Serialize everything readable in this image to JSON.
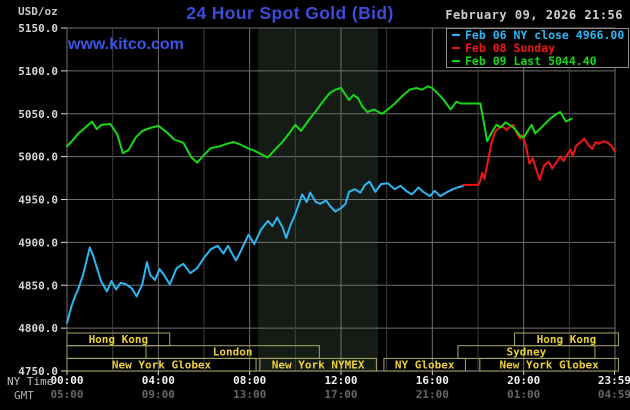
{
  "header": {
    "unit_label": "USD/oz",
    "title": "24 Hour Spot Gold (Bid)",
    "datetime": "February 09, 2026 21:56"
  },
  "watermark": "www.kitco.com",
  "legend": {
    "items": [
      {
        "label": "Feb 06 NY close 4966.00",
        "color": "#2cb6f2"
      },
      {
        "label": "Feb 08 Sunday",
        "color": "#f01616"
      },
      {
        "label": "Feb 09 Last 5044.40",
        "color": "#17d817"
      }
    ]
  },
  "axis_captions": {
    "primary": "NY Time",
    "secondary": "GMT"
  },
  "chart_data": {
    "type": "line",
    "title": "24 Hour Spot Gold (Bid)",
    "ylabel": "USD/oz",
    "ylim": [
      4750,
      5150
    ],
    "xlim_hours": [
      0,
      24
    ],
    "grid": true,
    "legend_position": "top-right",
    "y_ticks": [
      {
        "value": 5150,
        "label": "5150.0"
      },
      {
        "value": 5100,
        "label": "5100.0"
      },
      {
        "value": 5050,
        "label": "5050.0"
      },
      {
        "value": 5000,
        "label": "5000.0"
      },
      {
        "value": 4950,
        "label": "4950.0"
      },
      {
        "value": 4900,
        "label": "4900.0"
      },
      {
        "value": 4850,
        "label": "4850.0"
      },
      {
        "value": 4800,
        "label": "4800.0"
      },
      {
        "value": 4750,
        "label": "4750.0"
      }
    ],
    "x_ticks": [
      {
        "hour": 0,
        "ny": "00:00",
        "gmt": "05:00"
      },
      {
        "hour": 4,
        "ny": "04:00",
        "gmt": "09:00"
      },
      {
        "hour": 8,
        "ny": "08:00",
        "gmt": "13:00"
      },
      {
        "hour": 12,
        "ny": "12:00",
        "gmt": "17:00"
      },
      {
        "hour": 16,
        "ny": "16:00",
        "gmt": "21:00"
      },
      {
        "hour": 20,
        "ny": "20:00",
        "gmt": "01:00"
      },
      {
        "hour": 23.983,
        "ny": "23:59",
        "gmt": "04:59"
      }
    ],
    "grid_minor_hours": [
      2,
      6,
      10,
      14,
      18,
      22
    ],
    "grid_major_hours": [
      4,
      8,
      12,
      16,
      20
    ],
    "highlight_band_hours": [
      8.37,
      13.62
    ],
    "colors": {
      "band": "#151c15",
      "grid_major": "#6f6f6f",
      "grid_minor": "#3e3e3e",
      "axis_line": "#9a9a9a",
      "tick": "#d8d8d8",
      "y_label": "#d6d6d6",
      "x_label_ny": "#f0f0f0",
      "x_label_gmt": "#666666",
      "session_border": "#a8a863",
      "session_text": "#e9cf3b"
    },
    "sessions": [
      {
        "label": "Hong Kong",
        "row": 0,
        "start": 0,
        "end": 4.5
      },
      {
        "label": "Hong Kong",
        "row": 0,
        "start": 19.6,
        "end": 24.15
      },
      {
        "label": "",
        "row": 1,
        "start": 0,
        "end": 3.46
      },
      {
        "label": "London",
        "row": 1,
        "start": 3.46,
        "end": 11.05
      },
      {
        "label": "Sydney",
        "row": 1,
        "start": 17.12,
        "end": 23.12
      },
      {
        "label": "New York Globex",
        "row": 2,
        "start": 0,
        "end": 8.28
      },
      {
        "label": "New York NYMEX",
        "row": 2,
        "start": 8.45,
        "end": 13.55
      },
      {
        "label": "NY Globex",
        "row": 2,
        "start": 13.88,
        "end": 17.45
      },
      {
        "label": "New York Globex",
        "row": 2,
        "start": 18.08,
        "end": 24.15
      }
    ],
    "series": [
      {
        "name": "Feb 06",
        "color": "#2cb6f2",
        "points": [
          [
            0,
            4806
          ],
          [
            0.2,
            4826
          ],
          [
            0.35,
            4837
          ],
          [
            0.5,
            4846
          ],
          [
            0.7,
            4862
          ],
          [
            0.85,
            4878
          ],
          [
            1.0,
            4894
          ],
          [
            1.15,
            4884
          ],
          [
            1.3,
            4871
          ],
          [
            1.5,
            4854
          ],
          [
            1.75,
            4843
          ],
          [
            1.95,
            4855
          ],
          [
            2.15,
            4845
          ],
          [
            2.35,
            4853
          ],
          [
            2.6,
            4851
          ],
          [
            2.85,
            4846
          ],
          [
            3.05,
            4837
          ],
          [
            3.3,
            4851
          ],
          [
            3.5,
            4877
          ],
          [
            3.65,
            4862
          ],
          [
            3.85,
            4856
          ],
          [
            4.05,
            4869
          ],
          [
            4.25,
            4862
          ],
          [
            4.5,
            4851
          ],
          [
            4.8,
            4870
          ],
          [
            5.1,
            4875
          ],
          [
            5.4,
            4864
          ],
          [
            5.7,
            4870
          ],
          [
            6.0,
            4882
          ],
          [
            6.3,
            4892
          ],
          [
            6.6,
            4896
          ],
          [
            6.85,
            4887
          ],
          [
            7.05,
            4896
          ],
          [
            7.25,
            4886
          ],
          [
            7.4,
            4879
          ],
          [
            7.65,
            4892
          ],
          [
            7.95,
            4909
          ],
          [
            8.2,
            4898
          ],
          [
            8.5,
            4915
          ],
          [
            8.8,
            4925
          ],
          [
            9.0,
            4919
          ],
          [
            9.2,
            4929
          ],
          [
            9.45,
            4917
          ],
          [
            9.6,
            4905
          ],
          [
            9.8,
            4921
          ],
          [
            10.0,
            4933
          ],
          [
            10.3,
            4956
          ],
          [
            10.5,
            4947
          ],
          [
            10.65,
            4958
          ],
          [
            10.9,
            4947
          ],
          [
            11.1,
            4945
          ],
          [
            11.35,
            4949
          ],
          [
            11.5,
            4943
          ],
          [
            11.75,
            4936
          ],
          [
            12.0,
            4940
          ],
          [
            12.2,
            4945
          ],
          [
            12.35,
            4959
          ],
          [
            12.6,
            4962
          ],
          [
            12.85,
            4958
          ],
          [
            13.05,
            4967
          ],
          [
            13.25,
            4971
          ],
          [
            13.5,
            4959
          ],
          [
            13.75,
            4968
          ],
          [
            14.05,
            4969
          ],
          [
            14.35,
            4962
          ],
          [
            14.6,
            4966
          ],
          [
            14.85,
            4960
          ],
          [
            15.1,
            4956
          ],
          [
            15.4,
            4964
          ],
          [
            15.6,
            4959
          ],
          [
            15.9,
            4954
          ],
          [
            16.1,
            4960
          ],
          [
            16.35,
            4954
          ],
          [
            16.6,
            4958
          ],
          [
            16.9,
            4962
          ],
          [
            17.1,
            4964
          ],
          [
            17.35,
            4966
          ]
        ]
      },
      {
        "name": "Feb 08",
        "color": "#f01616",
        "points": [
          [
            17.35,
            4967
          ],
          [
            18.0,
            4967
          ],
          [
            18.1,
            4972
          ],
          [
            18.18,
            4981
          ],
          [
            18.28,
            4974
          ],
          [
            18.45,
            4997
          ],
          [
            18.6,
            5017
          ],
          [
            18.75,
            5029
          ],
          [
            18.9,
            5033
          ],
          [
            19.05,
            5036
          ],
          [
            19.25,
            5031
          ],
          [
            19.4,
            5035
          ],
          [
            19.55,
            5037
          ],
          [
            19.7,
            5027
          ],
          [
            19.85,
            5021
          ],
          [
            19.95,
            5025
          ],
          [
            20.1,
            5012
          ],
          [
            20.25,
            4992
          ],
          [
            20.4,
            4998
          ],
          [
            20.55,
            4985
          ],
          [
            20.7,
            4973
          ],
          [
            20.9,
            4990
          ],
          [
            21.1,
            4994
          ],
          [
            21.25,
            4986
          ],
          [
            21.45,
            4994
          ],
          [
            21.6,
            5000
          ],
          [
            21.75,
            4995
          ],
          [
            21.9,
            5002
          ],
          [
            22.05,
            5008
          ],
          [
            22.15,
            5001
          ],
          [
            22.3,
            5013
          ],
          [
            22.5,
            5017
          ],
          [
            22.65,
            5021
          ],
          [
            22.85,
            5013
          ],
          [
            23.0,
            5009
          ],
          [
            23.15,
            5017
          ],
          [
            23.3,
            5015
          ],
          [
            23.5,
            5018
          ],
          [
            23.7,
            5016
          ],
          [
            23.85,
            5012
          ],
          [
            24.0,
            5006
          ]
        ]
      },
      {
        "name": "Feb 09",
        "color": "#17d817",
        "points": [
          [
            0,
            5012
          ],
          [
            0.25,
            5019
          ],
          [
            0.5,
            5027
          ],
          [
            0.8,
            5034
          ],
          [
            1.1,
            5041
          ],
          [
            1.3,
            5032
          ],
          [
            1.5,
            5037
          ],
          [
            1.9,
            5038
          ],
          [
            2.2,
            5026
          ],
          [
            2.45,
            5004
          ],
          [
            2.7,
            5008
          ],
          [
            3.0,
            5022
          ],
          [
            3.3,
            5030
          ],
          [
            3.6,
            5033
          ],
          [
            4.0,
            5036
          ],
          [
            4.3,
            5030
          ],
          [
            4.7,
            5020
          ],
          [
            5.1,
            5016
          ],
          [
            5.45,
            4999
          ],
          [
            5.7,
            4993
          ],
          [
            6.0,
            5002
          ],
          [
            6.3,
            5010
          ],
          [
            6.7,
            5012
          ],
          [
            7.0,
            5015
          ],
          [
            7.3,
            5017
          ],
          [
            7.6,
            5014
          ],
          [
            7.9,
            5010
          ],
          [
            8.2,
            5007
          ],
          [
            8.5,
            5003
          ],
          [
            8.8,
            4999
          ],
          [
            9.1,
            5008
          ],
          [
            9.4,
            5016
          ],
          [
            9.7,
            5026
          ],
          [
            10.0,
            5037
          ],
          [
            10.25,
            5030
          ],
          [
            10.6,
            5043
          ],
          [
            10.9,
            5053
          ],
          [
            11.2,
            5064
          ],
          [
            11.5,
            5074
          ],
          [
            11.75,
            5078
          ],
          [
            12.0,
            5080
          ],
          [
            12.2,
            5072
          ],
          [
            12.35,
            5066
          ],
          [
            12.55,
            5072
          ],
          [
            12.75,
            5068
          ],
          [
            12.95,
            5058
          ],
          [
            13.15,
            5052
          ],
          [
            13.45,
            5055
          ],
          [
            13.8,
            5050
          ],
          [
            14.1,
            5056
          ],
          [
            14.4,
            5063
          ],
          [
            14.7,
            5071
          ],
          [
            15.0,
            5078
          ],
          [
            15.3,
            5080
          ],
          [
            15.55,
            5078
          ],
          [
            15.8,
            5082
          ],
          [
            16.0,
            5080
          ],
          [
            16.3,
            5072
          ],
          [
            16.5,
            5066
          ],
          [
            16.8,
            5055
          ],
          [
            17.05,
            5064
          ],
          [
            17.25,
            5062
          ],
          [
            18.1,
            5062
          ],
          [
            18.25,
            5041
          ],
          [
            18.4,
            5018
          ],
          [
            18.6,
            5028
          ],
          [
            18.8,
            5037
          ],
          [
            19.0,
            5034
          ],
          [
            19.2,
            5040
          ],
          [
            19.45,
            5036
          ],
          [
            19.65,
            5031
          ],
          [
            19.85,
            5024
          ],
          [
            20.0,
            5022
          ],
          [
            20.2,
            5031
          ],
          [
            20.35,
            5037
          ],
          [
            20.5,
            5027
          ],
          [
            20.7,
            5032
          ],
          [
            21.0,
            5040
          ],
          [
            21.2,
            5045
          ],
          [
            21.4,
            5049
          ],
          [
            21.6,
            5052
          ],
          [
            21.85,
            5041
          ],
          [
            22.1,
            5044.4
          ]
        ]
      }
    ]
  }
}
